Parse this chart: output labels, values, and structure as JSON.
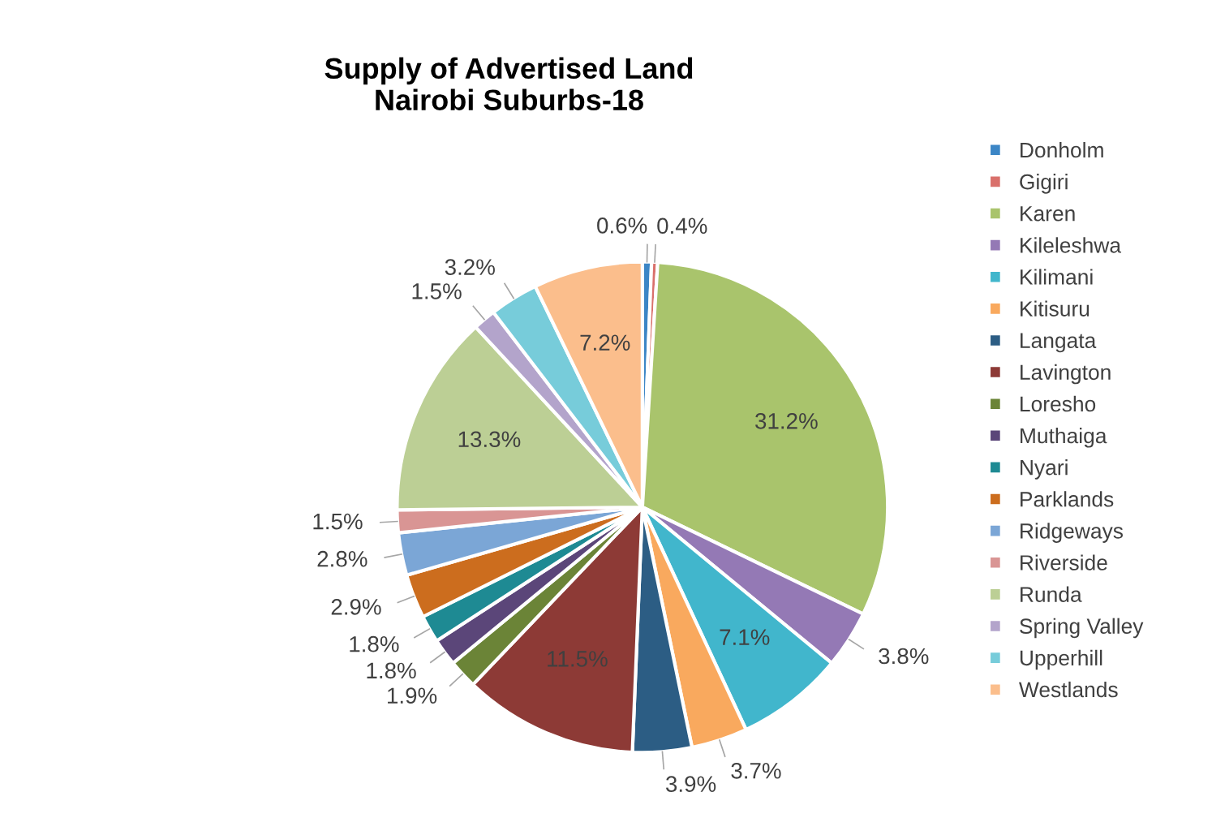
{
  "chart_data": {
    "type": "pie",
    "title": "Supply of Advertised Land\nNairobi Suburbs-18",
    "categories": [
      "Donholm",
      "Gigiri",
      "Karen",
      "Kileleshwa",
      "Kilimani",
      "Kitisuru",
      "Langata",
      "Lavington",
      "Loresho",
      "Muthaiga",
      "Nyari",
      "Parklands",
      "Ridgeways",
      "Riverside",
      "Runda",
      "Spring Valley",
      "Upperhill",
      "Westlands"
    ],
    "values": [
      0.6,
      0.4,
      31.2,
      3.8,
      7.1,
      3.7,
      3.9,
      11.5,
      1.9,
      1.8,
      1.8,
      2.9,
      2.8,
      1.5,
      13.3,
      1.5,
      3.2,
      7.2
    ],
    "colors": [
      "#3c86c6",
      "#d9706b",
      "#a9c46c",
      "#9479b5",
      "#41b6cc",
      "#f9a95e",
      "#2c5d84",
      "#8d3a36",
      "#6b8437",
      "#5b4679",
      "#1e8a93",
      "#cc6d1e",
      "#7ba6d6",
      "#d99594",
      "#bccf95",
      "#b3a4cb",
      "#77ccda",
      "#fbbe8c"
    ],
    "value_labels": [
      "0.6%",
      "0.4%",
      "31.2%",
      "3.8%",
      "7.1%",
      "3.7%",
      "3.9%",
      "11.5%",
      "1.9%",
      "1.8%",
      "1.8%",
      "2.9%",
      "2.8%",
      "1.5%",
      "13.3%",
      "1.5%",
      "3.2%",
      "7.2%"
    ],
    "legend": "right"
  }
}
